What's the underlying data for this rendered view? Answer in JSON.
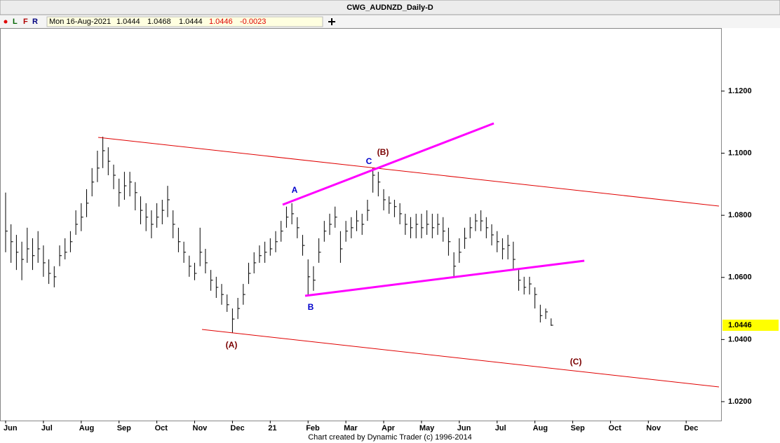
{
  "header": {
    "title": "CWG_AUDNZD_Daily-D",
    "flags": [
      "L",
      "F",
      "R"
    ],
    "date": "Mon 16-Aug-2021",
    "quote": [
      "1.0444",
      "1.0468",
      "1.0444",
      "1.0446",
      "-0.0023"
    ],
    "footer": "Chart created by Dynamic Trader  (c) 1996-2014"
  },
  "chart_data": {
    "type": "ohlc",
    "color": "#000000",
    "categories": [
      "Jun",
      null,
      null,
      null,
      null,
      null,
      null,
      "Jul",
      null,
      null,
      null,
      null,
      null,
      null,
      "Aug",
      null,
      null,
      null,
      null,
      null,
      null,
      "Sep",
      null,
      null,
      null,
      null,
      null,
      null,
      "Oct",
      null,
      null,
      null,
      null,
      null,
      null,
      "Nov",
      null,
      null,
      null,
      null,
      null,
      null,
      "Dec",
      null,
      null,
      null,
      null,
      null,
      null,
      "21",
      null,
      null,
      null,
      null,
      null,
      null,
      "Feb",
      null,
      null,
      null,
      null,
      null,
      null,
      "Mar",
      null,
      null,
      null,
      null,
      null,
      null,
      "Apr",
      null,
      null,
      null,
      null,
      null,
      null,
      "May",
      null,
      null,
      null,
      null,
      null,
      null,
      "Jun",
      null,
      null,
      null,
      null,
      null,
      null,
      "Jul",
      null,
      null,
      null,
      null,
      null,
      null,
      "Aug",
      null,
      null,
      null,
      null,
      null,
      null,
      "Sep",
      null,
      null,
      null,
      null,
      null,
      null,
      "Oct",
      null,
      null,
      null,
      null,
      null,
      null,
      "Nov",
      null,
      null,
      null,
      null,
      null,
      null,
      "Dec",
      null,
      null,
      null,
      null,
      null,
      null
    ],
    "high": [
      1.0873,
      1.0771,
      1.0737,
      1.0715,
      1.076,
      1.0726,
      1.0749,
      1.0703,
      1.0658,
      1.0636,
      1.0703,
      1.0726,
      1.0749,
      1.0816,
      1.0839,
      1.0884,
      1.0952,
      1.1008,
      1.1053,
      1.1019,
      1.0963,
      1.0918,
      1.094,
      1.094,
      1.0907,
      1.0861,
      1.0839,
      1.0816,
      1.0839,
      1.085,
      1.0895,
      1.0816,
      1.076,
      1.0715,
      1.067,
      1.0647,
      1.076,
      1.0692,
      1.0624,
      1.0602,
      1.0579,
      1.0545,
      1.05,
      1.0534,
      1.0579,
      1.0647,
      1.0681,
      1.0703,
      1.0715,
      1.0726,
      1.0749,
      1.0782,
      1.0828,
      1.0839,
      1.0794,
      1.0737,
      1.0658,
      1.0636,
      1.0726,
      1.0782,
      1.0805,
      1.0828,
      1.0749,
      1.0782,
      1.0794,
      1.0816,
      1.0805,
      1.085,
      1.0952,
      1.094,
      1.0884,
      1.0861,
      1.085,
      1.0839,
      1.0805,
      1.0794,
      1.0805,
      1.0805,
      1.0816,
      1.0805,
      1.0805,
      1.0794,
      1.076,
      1.0681,
      1.0726,
      1.076,
      1.0794,
      1.0805,
      1.0816,
      1.0794,
      1.0771,
      1.0749,
      1.0726,
      1.0737,
      1.0715,
      1.0624,
      1.0602,
      1.0602,
      1.0568,
      1.0512,
      1.05,
      1.0468,
      null,
      null,
      null,
      null,
      null,
      null,
      null,
      null,
      null,
      null,
      null,
      null,
      null,
      null,
      null,
      null,
      null,
      null,
      null,
      null,
      null,
      null,
      null,
      null,
      null,
      null,
      null,
      null,
      null,
      null,
      null
    ],
    "low": [
      1.0681,
      1.0647,
      1.0624,
      1.0591,
      1.0647,
      1.0624,
      1.0647,
      1.0602,
      1.0579,
      1.0568,
      1.0636,
      1.0658,
      1.0681,
      1.0737,
      1.0749,
      1.0794,
      1.0861,
      1.0907,
      1.0952,
      1.0929,
      1.0884,
      1.0828,
      1.085,
      1.0861,
      1.0816,
      1.0771,
      1.0749,
      1.0726,
      1.076,
      1.0771,
      1.0794,
      1.0726,
      1.0681,
      1.0647,
      1.0602,
      1.0591,
      1.0636,
      1.0613,
      1.0557,
      1.0534,
      1.0512,
      1.0489,
      1.0421,
      1.0466,
      1.0512,
      1.0579,
      1.0613,
      1.0647,
      1.0647,
      1.067,
      1.0681,
      1.0715,
      1.076,
      1.0771,
      1.0726,
      1.067,
      1.0545,
      1.0557,
      1.0647,
      1.0715,
      1.0737,
      1.076,
      1.0647,
      1.0715,
      1.0726,
      1.0749,
      1.0737,
      1.0782,
      1.0873,
      1.0861,
      1.0816,
      1.0805,
      1.0794,
      1.0771,
      1.0737,
      1.0726,
      1.0726,
      1.0726,
      1.0737,
      1.0726,
      1.0737,
      1.0715,
      1.067,
      1.0602,
      1.0647,
      1.0692,
      1.0726,
      1.0749,
      1.0749,
      1.0726,
      1.0703,
      1.0681,
      1.0658,
      1.0658,
      1.0624,
      1.0557,
      1.0545,
      1.0545,
      1.05,
      1.0455,
      1.0466,
      1.0444,
      null,
      null,
      null,
      null,
      null,
      null,
      null,
      null,
      null,
      null,
      null,
      null,
      null,
      null,
      null,
      null,
      null,
      null,
      null,
      null,
      null,
      null,
      null,
      null,
      null,
      null,
      null,
      null,
      null,
      null,
      null
    ],
    "close": [
      1.0749,
      1.0715,
      1.0681,
      1.0658,
      1.0692,
      1.067,
      1.0692,
      1.0647,
      1.0613,
      1.0602,
      1.067,
      1.0681,
      1.0715,
      1.0771,
      1.0794,
      1.0839,
      1.0907,
      1.0952,
      1.1008,
      1.0974,
      1.0929,
      1.0873,
      1.0895,
      1.0907,
      1.0873,
      1.0816,
      1.0794,
      1.0771,
      1.0794,
      1.0816,
      1.085,
      1.0771,
      1.0715,
      1.0681,
      1.0636,
      1.0613,
      1.0681,
      1.0647,
      1.0591,
      1.0568,
      1.0545,
      1.0512,
      1.0466,
      1.05,
      1.0545,
      1.0613,
      1.0647,
      1.067,
      1.0681,
      1.0692,
      1.0715,
      1.0749,
      1.0794,
      1.0805,
      1.076,
      1.0703,
      1.0602,
      1.0591,
      1.0681,
      1.0749,
      1.0771,
      1.0794,
      1.0692,
      1.0749,
      1.076,
      1.0782,
      1.0771,
      1.0816,
      1.0929,
      1.0907,
      1.085,
      1.0839,
      1.0828,
      1.0805,
      1.0771,
      1.076,
      1.0771,
      1.076,
      1.0771,
      1.076,
      1.0771,
      1.0749,
      1.0715,
      1.0636,
      1.0681,
      1.0726,
      1.076,
      1.0782,
      1.0782,
      1.076,
      1.0737,
      1.0715,
      1.0692,
      1.0703,
      1.0658,
      1.0591,
      1.0568,
      1.0579,
      1.0545,
      1.0477,
      1.0489,
      1.0446,
      null,
      null,
      null,
      null,
      null,
      null,
      null,
      null,
      null,
      null,
      null,
      null,
      null,
      null,
      null,
      null,
      null,
      null,
      null,
      null,
      null,
      null,
      null,
      null,
      null,
      null,
      null,
      null,
      null,
      null,
      null
    ],
    "ylim": [
      1.0139,
      1.1403
    ],
    "yticks": [
      {
        "value": 1.02,
        "label": "1.0200"
      },
      {
        "value": 1.04,
        "label": "1.0400"
      },
      {
        "value": 1.06,
        "label": "1.0600"
      },
      {
        "value": 1.08,
        "label": "1.0800"
      },
      {
        "value": 1.1,
        "label": "1.1000"
      },
      {
        "value": 1.12,
        "label": "1.1200"
      }
    ],
    "annotations": [
      "(A)",
      "A",
      "B",
      "C",
      "(B)",
      "(C)"
    ]
  }
}
